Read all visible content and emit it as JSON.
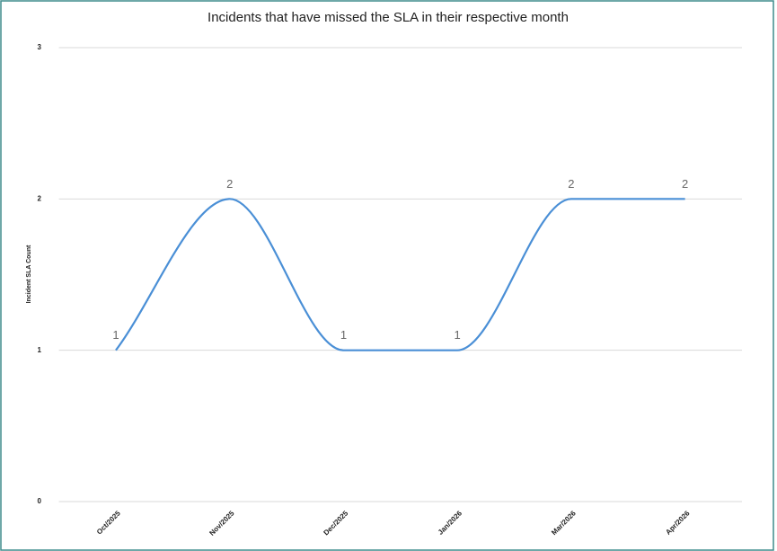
{
  "chart_data": {
    "type": "line",
    "title": "Incidents that have missed the SLA in their respective month",
    "y_label": "Incident SLA Count",
    "categories": [
      "Oct/2025",
      "Nov/2025",
      "Dec/2025",
      "Jan/2026",
      "Mar/2026",
      "Apr/2026"
    ],
    "values": [
      1,
      2,
      1,
      1,
      2,
      2
    ],
    "color": "#4a8fd6",
    "ylim": [
      0,
      3
    ],
    "yticks": [
      0,
      1,
      2,
      3
    ],
    "grid": true,
    "smooth": true,
    "data_labels": true
  }
}
